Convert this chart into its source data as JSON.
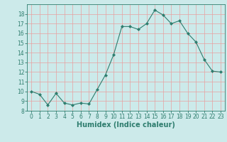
{
  "title": "",
  "xlabel": "Humidex (Indice chaleur)",
  "ylabel": "",
  "x": [
    0,
    1,
    2,
    3,
    4,
    5,
    6,
    7,
    8,
    9,
    10,
    11,
    12,
    13,
    14,
    15,
    16,
    17,
    18,
    19,
    20,
    21,
    22,
    23
  ],
  "y": [
    10.0,
    9.7,
    8.6,
    9.8,
    8.8,
    8.6,
    8.8,
    8.7,
    10.2,
    11.7,
    13.8,
    16.7,
    16.7,
    16.4,
    17.0,
    18.4,
    17.9,
    17.0,
    17.3,
    16.0,
    15.1,
    13.3,
    12.1,
    12.0
  ],
  "line_color": "#2e7d6e",
  "marker": "D",
  "marker_size": 2.0,
  "bg_color": "#cceaea",
  "grid_color": "#e8a0a0",
  "ylim": [
    8,
    19
  ],
  "xlim": [
    -0.5,
    23.5
  ],
  "yticks": [
    8,
    9,
    10,
    11,
    12,
    13,
    14,
    15,
    16,
    17,
    18
  ],
  "xticks": [
    0,
    1,
    2,
    3,
    4,
    5,
    6,
    7,
    8,
    9,
    10,
    11,
    12,
    13,
    14,
    15,
    16,
    17,
    18,
    19,
    20,
    21,
    22,
    23
  ],
  "tick_fontsize": 5.5,
  "label_fontsize": 7.0,
  "linewidth": 0.8
}
